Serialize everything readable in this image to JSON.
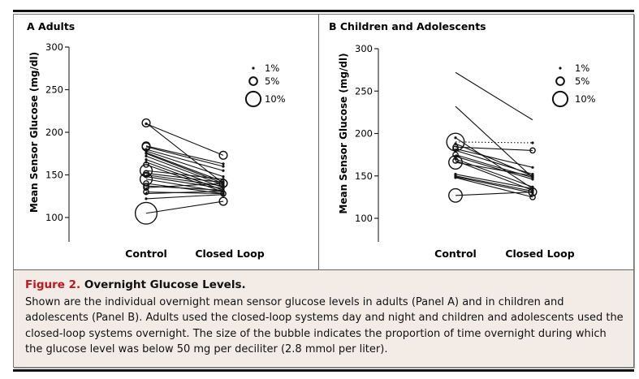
{
  "chart_data": [
    {
      "type": "scatter",
      "panel_label": "A",
      "title": "Adults",
      "ylabel": "Mean Sensor Glucose (mg/dl)",
      "ylim": [
        100,
        300
      ],
      "yticks": [
        "100",
        "150",
        "200",
        "250",
        "300"
      ],
      "categories": [
        "Control",
        "Closed Loop"
      ],
      "legend": {
        "placement": "top-right",
        "entries": [
          {
            "label": "1%",
            "value": 1
          },
          {
            "label": "5%",
            "value": 5
          },
          {
            "label": "10%",
            "value": 10
          }
        ]
      },
      "pairs": [
        [
          211,
          140,
          5,
          1
        ],
        [
          210,
          173,
          1,
          5
        ],
        [
          184,
          163,
          5,
          1
        ],
        [
          183,
          160,
          5,
          1
        ],
        [
          180,
          155,
          1,
          1
        ],
        [
          178,
          148,
          1,
          1
        ],
        [
          176,
          142,
          1,
          1
        ],
        [
          175,
          140,
          1,
          5
        ],
        [
          172,
          138,
          1,
          1
        ],
        [
          168,
          135,
          1,
          1
        ],
        [
          165,
          132,
          1,
          1
        ],
        [
          162,
          130,
          3,
          1
        ],
        [
          155,
          145,
          8,
          1
        ],
        [
          152,
          141,
          3,
          1
        ],
        [
          150,
          137,
          3,
          1
        ],
        [
          148,
          134,
          1,
          1
        ],
        [
          145,
          130,
          8,
          1
        ],
        [
          140,
          128,
          3,
          1
        ],
        [
          137,
          132,
          3,
          1
        ],
        [
          135,
          140,
          3,
          5
        ],
        [
          130,
          128,
          3,
          3
        ],
        [
          128,
          131,
          1,
          1
        ],
        [
          122,
          127,
          1,
          1
        ],
        [
          105,
          119,
          15,
          5
        ]
      ],
      "pair_fields": [
        "control",
        "closed_loop",
        "control_pct_below_50",
        "closed_loop_pct_below_50"
      ]
    },
    {
      "type": "scatter",
      "panel_label": "B",
      "title": "Children and Adolescents",
      "ylabel": "Mean Sensor Glucose (mg/dl)",
      "ylim": [
        100,
        300
      ],
      "yticks": [
        "100",
        "150",
        "200",
        "250",
        "300"
      ],
      "categories": [
        "Control",
        "Closed Loop"
      ],
      "legend": {
        "placement": "top-right",
        "entries": [
          {
            "label": "1%",
            "value": 1
          },
          {
            "label": "5%",
            "value": 5
          },
          {
            "label": "10%",
            "value": 10
          }
        ]
      },
      "pairs": [
        [
          272,
          216,
          0,
          0
        ],
        [
          232,
          148,
          0,
          1
        ],
        [
          195,
          135,
          1,
          1
        ],
        [
          190,
          189,
          12,
          1
        ],
        [
          188,
          150,
          1,
          1
        ],
        [
          184,
          180,
          3,
          3
        ],
        [
          182,
          160,
          3,
          1
        ],
        [
          180,
          152,
          1,
          1
        ],
        [
          175,
          148,
          3,
          1
        ],
        [
          173,
          146,
          1,
          1
        ],
        [
          170,
          137,
          1,
          1
        ],
        [
          168,
          133,
          3,
          1
        ],
        [
          166,
          150,
          9,
          1
        ],
        [
          152,
          135,
          1,
          1
        ],
        [
          150,
          132,
          1,
          1
        ],
        [
          149,
          130,
          1,
          1
        ],
        [
          148,
          125,
          1,
          3
        ],
        [
          127,
          131,
          9,
          5
        ]
      ],
      "dotted_pair_index": 3,
      "pair_fields": [
        "control",
        "closed_loop",
        "control_pct_below_50",
        "closed_loop_pct_below_50"
      ]
    }
  ],
  "caption": {
    "figure_label": "Figure 2.",
    "title": "Overnight Glucose Levels.",
    "text": "Shown are the individual overnight mean sensor glucose levels in adults (Panel A) and in children and adolescents (Panel B). Adults used the closed-loop systems day and night and children and adolescents used the closed-loop systems overnight. The size of the bubble indicates the proportion of time overnight during which the glucose level was below 50 mg per deciliter (2.8 mmol per liter)."
  },
  "colors": {
    "figure_label": "#c4161c",
    "caption_bg": "#f2ebe6",
    "marks": "#111111"
  }
}
